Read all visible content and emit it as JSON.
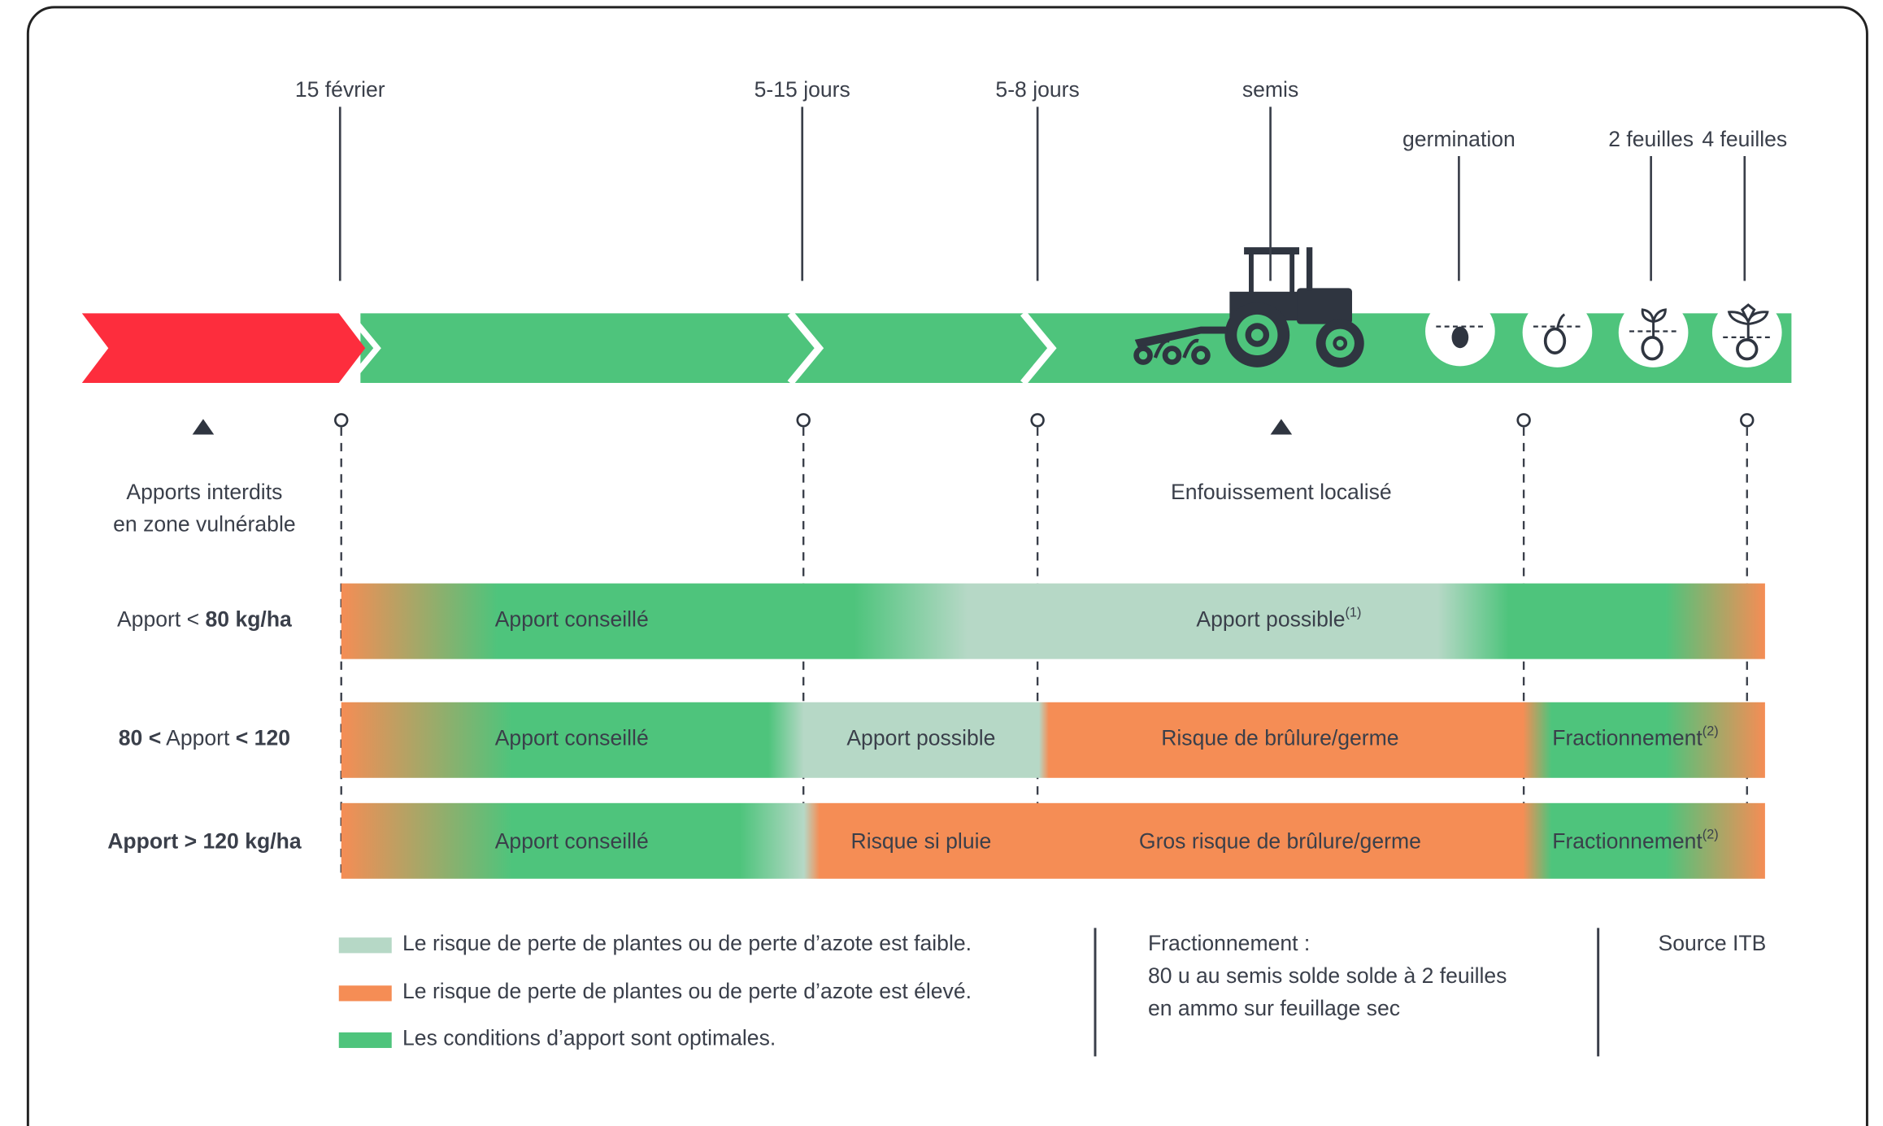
{
  "milestones": [
    "15 février",
    "5-15 jours",
    "5-8 jours",
    "semis",
    "germination",
    "2 feuilles",
    "4 feuilles"
  ],
  "zone_notes": [
    [
      "Apports interdits",
      "en zone vulnérable"
    ],
    [
      "Enfouissement localisé"
    ]
  ],
  "rows": [
    {
      "label": [
        {
          "text": "Apport < ",
          "bold": false
        },
        {
          "text": "80 kg/ha",
          "bold": true
        }
      ],
      "segments": [
        {
          "text": "Apport conseillé"
        },
        {
          "text": "Apport possible",
          "sup": "(1)"
        }
      ]
    },
    {
      "label": [
        {
          "text": "80 <",
          "bold": true
        },
        {
          "text": " Apport ",
          "bold": false
        },
        {
          "text": "< 120",
          "bold": true
        }
      ],
      "segments": [
        {
          "text": "Apport conseillé"
        },
        {
          "text": "Apport possible"
        },
        {
          "text": "Risque de brûlure/germe"
        },
        {
          "text": "Fractionnement",
          "sup": "(2)"
        }
      ]
    },
    {
      "label": [
        {
          "text": "Apport > 120 kg/ha",
          "bold": true
        }
      ],
      "segments": [
        {
          "text": "Apport conseillé"
        },
        {
          "text": "Risque si pluie"
        },
        {
          "text": "Gros risque de brûlure/germe"
        },
        {
          "text": "Fractionnement",
          "sup": "(2)"
        }
      ]
    }
  ],
  "legend": [
    {
      "text": "Le risque de perte de plantes ou de perte d’azote est faible.",
      "color": "#b6d8c6"
    },
    {
      "text": "Le risque de perte de plantes ou de perte d’azote est élevé.",
      "color": "#f58d55"
    },
    {
      "text": "Les conditions d’apport sont optimales.",
      "color": "#4ec47c"
    }
  ],
  "fractionnement_note": {
    "title": "Fractionnement :",
    "lines": [
      "80 u au semis solde solde à 2 feuilles",
      "en ammo sur feuillage sec"
    ]
  },
  "source": "Source ITB"
}
